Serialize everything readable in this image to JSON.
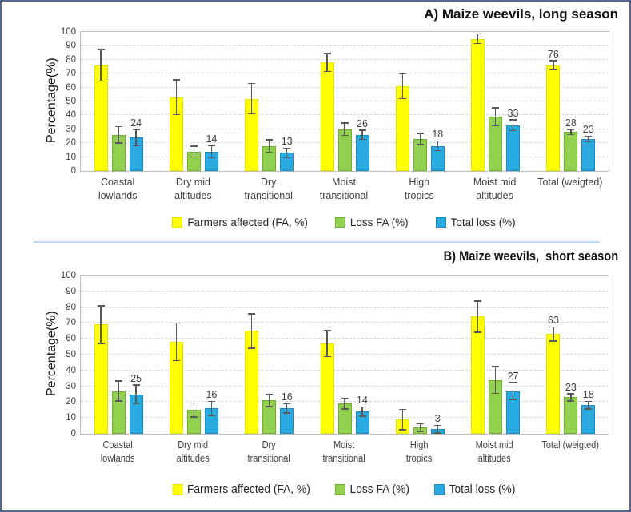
{
  "figure": {
    "border_color": "#56688F",
    "divider_color": "#BDD7EE",
    "background": "#FFFFFF"
  },
  "chart_data": [
    {
      "type": "bar",
      "title": "A) Maize weevils, long season",
      "ylabel": "Percentage(%)",
      "ylim": [
        0,
        100
      ],
      "ytick_step": 10,
      "grid": "horizontal-dashed",
      "legend_position": "bottom",
      "error_bars": true,
      "categories": [
        [
          "Coastal",
          "lowlands"
        ],
        [
          "Dry mid",
          "altitudes"
        ],
        [
          "Dry",
          "transitional"
        ],
        [
          "Moist",
          "transitional"
        ],
        [
          "High",
          "tropics"
        ],
        [
          "Moist mid",
          "altitudes"
        ],
        [
          "Total (weigted)"
        ]
      ],
      "series": [
        {
          "name": "Farmers affected (FA, %)",
          "color": "#FFFF00",
          "edge": "#E3E300",
          "values": [
            76,
            53,
            52,
            78,
            61,
            95,
            76
          ],
          "errors": [
            11,
            12,
            10.5,
            6,
            8.5,
            3,
            3
          ],
          "labels": [
            null,
            null,
            null,
            null,
            null,
            null,
            76
          ]
        },
        {
          "name": "Loss FA (%)",
          "color": "#92D050",
          "edge": "#6FB02C",
          "values": [
            26,
            14,
            18,
            30,
            23,
            39,
            28
          ],
          "errors": [
            5.5,
            3.5,
            4,
            4,
            3.5,
            6,
            1.5
          ],
          "labels": [
            null,
            null,
            null,
            null,
            null,
            null,
            28
          ]
        },
        {
          "name": "Total loss (%)",
          "color": "#29ABE2",
          "edge": "#1B8CBF",
          "values": [
            24,
            14,
            13,
            26,
            18,
            33,
            23
          ],
          "errors": [
            5.5,
            4,
            3,
            3,
            3,
            3.5,
            1.5
          ],
          "labels": [
            24,
            14,
            13,
            26,
            18,
            33,
            23
          ]
        }
      ]
    },
    {
      "type": "bar",
      "title": "B) Maize weevils,  short season",
      "ylabel": "Percentage(%)",
      "ylim": [
        0,
        100
      ],
      "ytick_step": 10,
      "grid": "horizontal-dashed",
      "legend_position": "bottom",
      "error_bars": true,
      "categories": [
        [
          "Coastal",
          "lowlands"
        ],
        [
          "Dry mid",
          "altitudes"
        ],
        [
          "Dry",
          "transitional"
        ],
        [
          "Moist",
          "transitional"
        ],
        [
          "High",
          "tropics"
        ],
        [
          "Moist mid",
          "altitudes"
        ],
        [
          "Total (weigted)"
        ]
      ],
      "series": [
        {
          "name": "Farmers affected (FA, %)",
          "color": "#FFFF00",
          "edge": "#E3E300",
          "values": [
            69,
            58,
            65,
            57,
            9,
            74,
            63
          ],
          "errors": [
            11.5,
            11.5,
            10.5,
            8,
            6,
            9.5,
            4
          ],
          "labels": [
            null,
            null,
            null,
            null,
            null,
            null,
            63
          ]
        },
        {
          "name": "Loss FA (%)",
          "color": "#92D050",
          "edge": "#6FB02C",
          "values": [
            27,
            15,
            21,
            19,
            4,
            34,
            23
          ],
          "errors": [
            6,
            4,
            3.5,
            3,
            2,
            8,
            2
          ],
          "labels": [
            null,
            null,
            null,
            null,
            null,
            null,
            23
          ]
        },
        {
          "name": "Total loss (%)",
          "color": "#29ABE2",
          "edge": "#1B8CBF",
          "values": [
            25,
            16,
            16,
            14,
            3,
            27,
            18
          ],
          "errors": [
            5.5,
            4,
            2.5,
            2.5,
            2,
            5,
            2
          ],
          "labels": [
            25,
            16,
            16,
            14,
            3,
            27,
            18
          ]
        }
      ]
    }
  ]
}
